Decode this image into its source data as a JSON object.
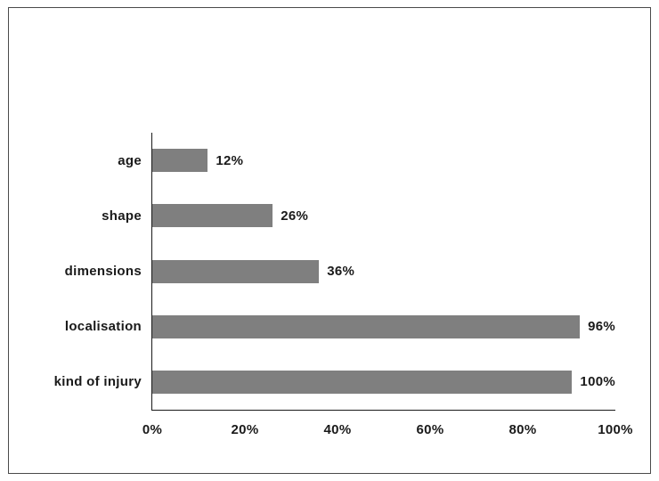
{
  "chart_data": {
    "type": "bar",
    "orientation": "horizontal",
    "title": "",
    "xlabel": "",
    "ylabel": "",
    "categories": [
      "age",
      "shape",
      "dimensions",
      "localisation",
      "kind of injury"
    ],
    "values": [
      12,
      26,
      36,
      96,
      100
    ],
    "value_labels": [
      "12%",
      "26%",
      "36%",
      "96%",
      "100%"
    ],
    "xlim": [
      0,
      100
    ],
    "xticks": [
      0,
      20,
      40,
      60,
      80,
      100
    ],
    "xtick_labels": [
      "0%",
      "20%",
      "40%",
      "60%",
      "80%",
      "100%"
    ],
    "grid": false,
    "legend": false,
    "bar_color": "#7f7f7f",
    "axis_color": "#1a1a1a",
    "text_color": "#1a1a1a",
    "background_color": "#ffffff",
    "frame_border_color": "#4a4a4a"
  }
}
